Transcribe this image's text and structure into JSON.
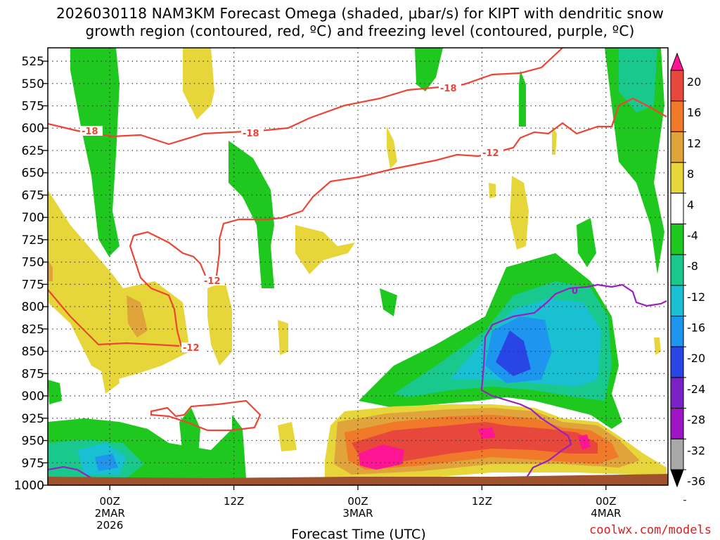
{
  "title_line1": "2026030118 NAM3KM Forecast Omega (shaded, μbar/s) for KIPT with dendritic snow",
  "title_line2": "growth region (contoured, red, ºC) and freezing level (contoured, purple, ºC)",
  "credit": "coolwx.com/models",
  "chart_data": {
    "type": "heatmap",
    "xlabel": "Forecast Time (UTC)",
    "ylabel": "",
    "y_axis": {
      "scale": "pressure",
      "ylim": [
        1000,
        510
      ],
      "ticks": [
        525,
        550,
        575,
        600,
        625,
        650,
        675,
        700,
        725,
        750,
        775,
        800,
        825,
        850,
        875,
        900,
        925,
        950,
        975,
        1000
      ]
    },
    "x_axis": {
      "unit": "hours",
      "xlim": [
        -5,
        45
      ],
      "ticks": [
        {
          "hour": 0,
          "lines": [
            "00Z",
            "2MAR",
            "2026"
          ]
        },
        {
          "hour": 10,
          "lines": [
            "12Z"
          ]
        },
        {
          "hour": 20,
          "lines": [
            "00Z",
            "3MAR"
          ]
        },
        {
          "hour": 30,
          "lines": [
            "12Z"
          ]
        },
        {
          "hour": 40,
          "lines": [
            "00Z",
            "4MAR"
          ]
        }
      ]
    },
    "colorbar": {
      "levels": [
        20,
        16,
        12,
        8,
        4,
        -4,
        -8,
        -12,
        -16,
        -20,
        -24,
        -28,
        -32,
        -36
      ],
      "colors": [
        "#ff1493",
        "#e8473c",
        "#f07a2a",
        "#e0a43a",
        "#e6d63a",
        "#ffffff",
        "#1ec81e",
        "#18c88c",
        "#19c0d2",
        "#1e96f0",
        "#2a45e6",
        "#7a22c8",
        "#a014c8",
        "#a8a8a8",
        "#000000"
      ]
    },
    "contour_labels": {
      "dgz": [
        "-18",
        "-18",
        "-18",
        "-12",
        "-12",
        "-12"
      ],
      "freezing": [
        "0"
      ]
    },
    "colors": {
      "dgz": "#ee4433",
      "freezing": "#9a1fc0",
      "ground": "#a0522d"
    }
  }
}
